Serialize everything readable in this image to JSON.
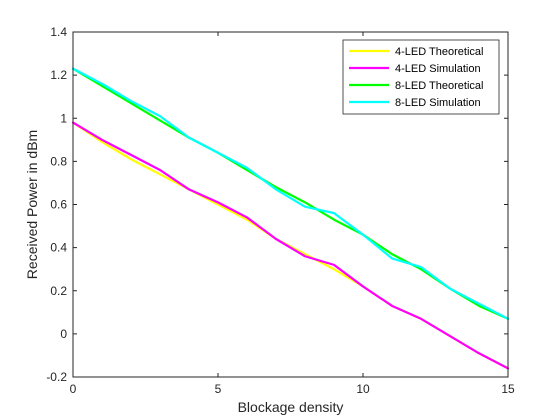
{
  "chart_data": {
    "type": "line",
    "title": "",
    "xlabel": "Blockage density",
    "ylabel": "Received Power in dBm",
    "xlim": [
      0,
      15
    ],
    "ylim": [
      -0.2,
      1.4
    ],
    "xticks": [
      0,
      5,
      10,
      15
    ],
    "yticks": [
      -0.2,
      0,
      0.2,
      0.4,
      0.6,
      0.8,
      1,
      1.2,
      1.4
    ],
    "grid": false,
    "legend_position": "top-right",
    "x": [
      0,
      1,
      2,
      3,
      4,
      5,
      6,
      7,
      8,
      9,
      10,
      11,
      12,
      13,
      14,
      15
    ],
    "series": [
      {
        "name": "4-LED Theoretical",
        "color": "#ffff00",
        "values": [
          0.98,
          0.89,
          0.81,
          0.74,
          0.67,
          0.6,
          0.53,
          0.44,
          0.37,
          0.3,
          0.22,
          0.13,
          0.07,
          -0.01,
          -0.09,
          -0.16
        ]
      },
      {
        "name": "4-LED Simulation",
        "color": "#ff00ff",
        "values": [
          0.98,
          0.9,
          0.83,
          0.76,
          0.67,
          0.61,
          0.54,
          0.44,
          0.36,
          0.32,
          0.22,
          0.13,
          0.07,
          -0.01,
          -0.09,
          -0.16
        ]
      },
      {
        "name": "8-LED Theoretical",
        "color": "#00ff00",
        "values": [
          1.23,
          1.15,
          1.07,
          0.99,
          0.91,
          0.84,
          0.76,
          0.68,
          0.61,
          0.53,
          0.46,
          0.37,
          0.3,
          0.21,
          0.13,
          0.07
        ]
      },
      {
        "name": "8-LED Simulation",
        "color": "#00ffff",
        "values": [
          1.23,
          1.16,
          1.08,
          1.01,
          0.91,
          0.84,
          0.77,
          0.67,
          0.59,
          0.56,
          0.46,
          0.35,
          0.31,
          0.21,
          0.14,
          0.07
        ]
      }
    ]
  }
}
